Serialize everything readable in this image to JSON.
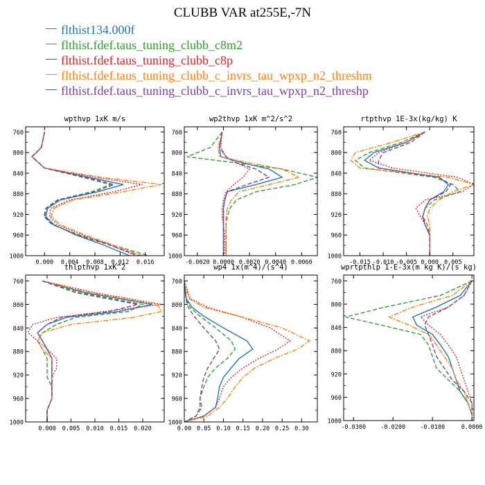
{
  "title": "CLUBB VAR at255E,-7N",
  "legend": [
    {
      "label": "flthist134.000f",
      "color": "#1f77b4",
      "dash": ""
    },
    {
      "label": "flthist.fdef.taus_tuning_clubb_c8m2",
      "color": "#2ca02c",
      "dash": "6,3"
    },
    {
      "label": "flthist.fdef.taus_tuning_clubb_c8p",
      "color": "#d62728",
      "dash": "2,2"
    },
    {
      "label": "flthist.fdef.taus_tuning_clubb_c_invrs_tau_wpxp_n2_threshm",
      "color": "#ff7f0e",
      "dash": "7,2,2,2"
    },
    {
      "label": "flthist.fdef.taus_tuning_clubb_c_invrs_tau_wpxp_n2_threshp",
      "color": "#7b3fa0",
      "dash": "6,3"
    }
  ],
  "chart_data": [
    {
      "type": "line",
      "title": "wpthvp  1xK m/s",
      "xlim": [
        -0.003,
        0.019
      ],
      "ylim": [
        750,
        1000
      ],
      "x_ticks": [
        "0.000",
        "0.004",
        "0.008",
        "0.012",
        "0.016"
      ],
      "y_ticks": [
        "760",
        "800",
        "840",
        "880",
        "920",
        "960",
        "1000"
      ],
      "y_levels": [
        760,
        790,
        808,
        830,
        848,
        862,
        876,
        892,
        908,
        924,
        940,
        960,
        980,
        1000
      ],
      "series": [
        [
          0.0,
          -0.0005,
          -0.002,
          0.0,
          0.007,
          0.0125,
          0.0085,
          0.0025,
          0.0005,
          0.0002,
          0.0015,
          0.005,
          0.0095,
          0.0135
        ],
        [
          0.0,
          -0.0005,
          -0.002,
          0.0,
          0.006,
          0.0105,
          0.0075,
          0.002,
          0.0002,
          -0.0001,
          0.0012,
          0.0055,
          0.011,
          0.0165
        ],
        [
          0.0,
          -0.0005,
          -0.002,
          0.0,
          0.008,
          0.0155,
          0.011,
          0.004,
          0.001,
          0.0008,
          0.002,
          0.006,
          0.0105,
          0.0145
        ],
        [
          0.0,
          -0.0005,
          -0.002,
          0.0,
          0.009,
          0.0185,
          0.0125,
          0.0045,
          0.0015,
          0.001,
          0.0025,
          0.0065,
          0.011,
          0.0155
        ],
        [
          0.0,
          -0.0005,
          -0.002,
          0.0,
          0.0065,
          0.011,
          0.008,
          0.0022,
          0.0003,
          0.0,
          0.0014,
          0.0052,
          0.0105,
          0.015
        ]
      ]
    },
    {
      "type": "line",
      "title": "wp2thvp  1xK m^2/s^2",
      "xlim": [
        -0.003,
        0.0072
      ],
      "ylim": [
        750,
        1000
      ],
      "x_ticks": [
        "-0.0020",
        "0.0000",
        "0.0020",
        "0.0040",
        "0.0060"
      ],
      "y_ticks": [
        "760",
        "800",
        "840",
        "880",
        "920",
        "960",
        "1000"
      ],
      "y_levels": [
        760,
        790,
        808,
        820,
        832,
        848,
        862,
        876,
        892,
        908,
        924,
        940,
        960,
        980,
        1000
      ],
      "series": [
        [
          -0.0001,
          -0.0003,
          -0.0002,
          0.0015,
          0.0035,
          0.0045,
          0.0025,
          0.0003,
          0.0001,
          0.0,
          0.0,
          0.0,
          0.0,
          0.0,
          0.0
        ],
        [
          -0.0001,
          -0.001,
          -0.0028,
          0.001,
          0.0045,
          0.0072,
          0.0055,
          0.0025,
          0.001,
          0.0005,
          0.0003,
          0.0002,
          0.0002,
          0.0002,
          0.0002
        ],
        [
          -0.0001,
          -0.0002,
          0.0002,
          0.001,
          0.002,
          0.0015,
          0.0008,
          0.0002,
          0.0,
          -0.0001,
          -0.0001,
          0.0,
          0.0001,
          0.0001,
          0.0001
        ],
        [
          -0.0001,
          -0.0004,
          -0.0003,
          0.002,
          0.0045,
          0.0058,
          0.0035,
          0.0012,
          0.0006,
          0.0003,
          0.0002,
          0.0002,
          0.0002,
          0.0002,
          0.0002
        ],
        [
          -0.0001,
          -0.0003,
          0.0002,
          0.001,
          0.0025,
          0.0035,
          0.0018,
          0.0003,
          0.0001,
          0.0,
          0.0,
          0.0,
          0.0,
          0.0,
          0.0
        ]
      ]
    },
    {
      "type": "line",
      "title": "rtpthvp  1E-3x(kg/kg) K",
      "xlim": [
        -0.0185,
        0.0095
      ],
      "ylim": [
        750,
        1000
      ],
      "x_ticks": [
        "-0.015",
        "-0.010",
        "-0.005",
        "0.000",
        "0.005"
      ],
      "y_ticks": [
        "760",
        "800",
        "840",
        "880",
        "920",
        "960",
        "1000"
      ],
      "y_levels": [
        760,
        780,
        800,
        815,
        830,
        848,
        862,
        876,
        892,
        908,
        924,
        940,
        960,
        980,
        1000
      ],
      "series": [
        [
          -0.001,
          -0.005,
          -0.012,
          -0.014,
          -0.011,
          0.002,
          0.004,
          0.003,
          0.0,
          -0.001,
          -0.0015,
          -0.001,
          0.0,
          0.0,
          0.0
        ],
        [
          -0.001,
          -0.006,
          -0.013,
          -0.016,
          -0.014,
          0.001,
          0.005,
          0.0065,
          0.001,
          -0.001,
          -0.0015,
          -0.0005,
          0.0,
          0.0,
          0.0
        ],
        [
          -0.001,
          -0.005,
          -0.011,
          -0.013,
          -0.008,
          0.006,
          0.0095,
          0.007,
          -0.001,
          -0.003,
          -0.002,
          -0.001,
          0.0,
          0.0,
          0.0
        ],
        [
          -0.001,
          -0.008,
          -0.016,
          -0.017,
          -0.015,
          0.004,
          0.0095,
          0.005,
          0.002,
          0.0,
          -0.0005,
          0.0,
          0.0,
          0.0,
          0.0
        ],
        [
          -0.001,
          -0.004,
          -0.01,
          -0.011,
          -0.011,
          0.002,
          0.0045,
          0.0035,
          0.0,
          -0.001,
          -0.0015,
          -0.001,
          0.0,
          0.0,
          0.0
        ]
      ]
    },
    {
      "type": "line",
      "title": "thlpthvp  1xK^2",
      "xlim": [
        -0.0045,
        0.0245
      ],
      "ylim": [
        750,
        1000
      ],
      "x_ticks": [
        "0.000",
        "0.005",
        "0.010",
        "0.015",
        "0.020"
      ],
      "y_ticks": [
        "760",
        "800",
        "840",
        "880",
        "920",
        "960",
        "1000"
      ],
      "y_levels": [
        760,
        780,
        800,
        812,
        822,
        834,
        848,
        862,
        876,
        892,
        908,
        924,
        940,
        960,
        980,
        1000
      ],
      "series": [
        [
          -0.001,
          0.008,
          0.022,
          0.015,
          0.004,
          0.0,
          -0.002,
          -0.001,
          0.0,
          0.001,
          0.001,
          0.001,
          0.001,
          0.001,
          0.0,
          0.0
        ],
        [
          -0.001,
          0.007,
          0.02,
          0.017,
          0.006,
          0.002,
          -0.001,
          -0.002,
          -0.001,
          0.0,
          0.0,
          0.0,
          0.001,
          0.001,
          0.0,
          0.0
        ],
        [
          -0.001,
          0.01,
          0.024,
          0.012,
          0.002,
          -0.003,
          -0.004,
          -0.002,
          0.0,
          0.002,
          0.002,
          0.001,
          0.001,
          0.001,
          0.0,
          0.0
        ],
        [
          -0.001,
          0.009,
          0.023,
          0.024,
          0.018,
          0.005,
          -0.001,
          -0.002,
          -0.001,
          0.001,
          0.001,
          0.001,
          0.001,
          0.001,
          0.0,
          0.0
        ],
        [
          -0.001,
          0.006,
          0.019,
          0.013,
          0.003,
          0.0,
          -0.002,
          -0.001,
          0.0,
          0.001,
          0.001,
          0.001,
          0.001,
          0.001,
          0.0,
          0.0
        ]
      ]
    },
    {
      "type": "line",
      "title": "wp4  1x(m^4)/(s^4)",
      "xlim": [
        0.0,
        0.34
      ],
      "ylim": [
        750,
        1000
      ],
      "x_ticks": [
        "0.00",
        "0.05",
        "0.10",
        "0.15",
        "0.20",
        "0.25",
        "0.30"
      ],
      "y_ticks": [
        "760",
        "800",
        "840",
        "880",
        "920",
        "960",
        "1000"
      ],
      "y_levels": [
        760,
        790,
        805,
        820,
        840,
        862,
        876,
        892,
        908,
        924,
        940,
        960,
        975,
        990,
        1000
      ],
      "series": [
        [
          0.0,
          0.005,
          0.02,
          0.05,
          0.1,
          0.16,
          0.175,
          0.14,
          0.12,
          0.1,
          0.09,
          0.085,
          0.08,
          0.05,
          0.0
        ],
        [
          0.0,
          0.005,
          0.015,
          0.04,
          0.08,
          0.12,
          0.13,
          0.11,
          0.08,
          0.06,
          0.05,
          0.04,
          0.045,
          0.03,
          0.0
        ],
        [
          0.0,
          0.015,
          0.06,
          0.14,
          0.22,
          0.27,
          0.24,
          0.19,
          0.15,
          0.12,
          0.1,
          0.09,
          0.08,
          0.05,
          0.0
        ],
        [
          0.0,
          0.012,
          0.05,
          0.14,
          0.25,
          0.32,
          0.29,
          0.23,
          0.18,
          0.15,
          0.13,
          0.11,
          0.09,
          0.06,
          0.0
        ],
        [
          0.0,
          0.004,
          0.01,
          0.025,
          0.05,
          0.08,
          0.09,
          0.075,
          0.06,
          0.05,
          0.045,
          0.04,
          0.04,
          0.03,
          0.0
        ]
      ]
    },
    {
      "type": "line",
      "title": "wprtpthlp  1-E-3x(m kg K)/(s kg)",
      "xlim": [
        -0.0325,
        0.0005
      ],
      "ylim": [
        750,
        1000
      ],
      "x_ticks": [
        "-0.0300",
        "-0.0200",
        "-0.0100",
        "0.0000"
      ],
      "y_ticks": [
        "760",
        "800",
        "840",
        "880",
        "920",
        "960",
        "1000"
      ],
      "y_levels": [
        760,
        785,
        805,
        822,
        836,
        852,
        870,
        890,
        910,
        930,
        950,
        970,
        990,
        1000
      ],
      "series": [
        [
          0.0,
          -0.003,
          -0.009,
          -0.015,
          -0.014,
          -0.01,
          -0.008,
          -0.006,
          -0.005,
          -0.004,
          -0.003,
          -0.001,
          0.0,
          0.0
        ],
        [
          0.0,
          -0.008,
          -0.022,
          -0.032,
          -0.023,
          -0.013,
          -0.011,
          -0.01,
          -0.009,
          -0.006,
          -0.003,
          -0.001,
          0.0,
          0.0
        ],
        [
          0.0,
          -0.002,
          -0.006,
          -0.013,
          -0.011,
          -0.008,
          -0.006,
          -0.004,
          -0.003,
          -0.002,
          -0.001,
          0.0,
          0.0,
          0.0
        ],
        [
          0.0,
          -0.005,
          -0.015,
          -0.021,
          -0.016,
          -0.011,
          -0.009,
          -0.007,
          -0.005,
          -0.004,
          -0.002,
          -0.001,
          0.0,
          0.0
        ],
        [
          0.0,
          -0.002,
          -0.006,
          -0.011,
          -0.012,
          -0.011,
          -0.01,
          -0.009,
          -0.007,
          -0.005,
          -0.002,
          0.0,
          0.0,
          0.0
        ]
      ]
    }
  ]
}
